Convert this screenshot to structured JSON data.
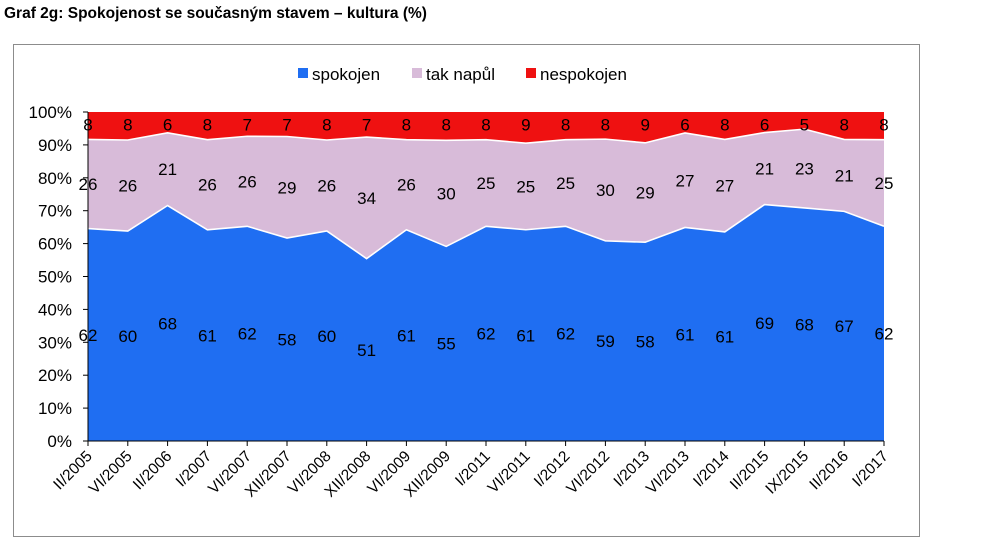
{
  "title": "Graf 2g: Spokojenost se současným stavem – kultura (%)",
  "chart_data": {
    "type": "area",
    "stacked": true,
    "percent_stacked": true,
    "categories": [
      "II/2005",
      "VI/2005",
      "II/2006",
      "I/2007",
      "VI/2007",
      "XII/2007",
      "VI/2008",
      "XII/2008",
      "VI/2009",
      "XII/2009",
      "I/2011",
      "VI/2011",
      "I/2012",
      "VI/2012",
      "I/2013",
      "VI/2013",
      "I/2014",
      "II/2015",
      "IX/2015",
      "II/2016",
      "I/2017"
    ],
    "series": [
      {
        "name": "spokojen",
        "color": "#1f6ef2",
        "values": [
          62,
          60,
          68,
          61,
          62,
          58,
          60,
          51,
          61,
          55,
          62,
          61,
          62,
          59,
          58,
          61,
          61,
          69,
          68,
          67,
          62
        ]
      },
      {
        "name": "tak napůl",
        "color": "#d8bbd9",
        "values": [
          26,
          26,
          21,
          26,
          26,
          29,
          26,
          34,
          26,
          30,
          25,
          25,
          25,
          30,
          29,
          27,
          27,
          21,
          23,
          21,
          25
        ]
      },
      {
        "name": "nespokojen",
        "color": "#ef1111",
        "values": [
          8,
          8,
          6,
          8,
          7,
          7,
          8,
          7,
          8,
          8,
          8,
          9,
          8,
          8,
          9,
          6,
          8,
          6,
          5,
          8,
          8
        ]
      }
    ],
    "y_ticks": [
      "0%",
      "10%",
      "20%",
      "30%",
      "40%",
      "50%",
      "60%",
      "70%",
      "80%",
      "90%",
      "100%"
    ],
    "ylim": [
      0,
      100
    ],
    "legend_position": "top-center",
    "grid": false
  }
}
